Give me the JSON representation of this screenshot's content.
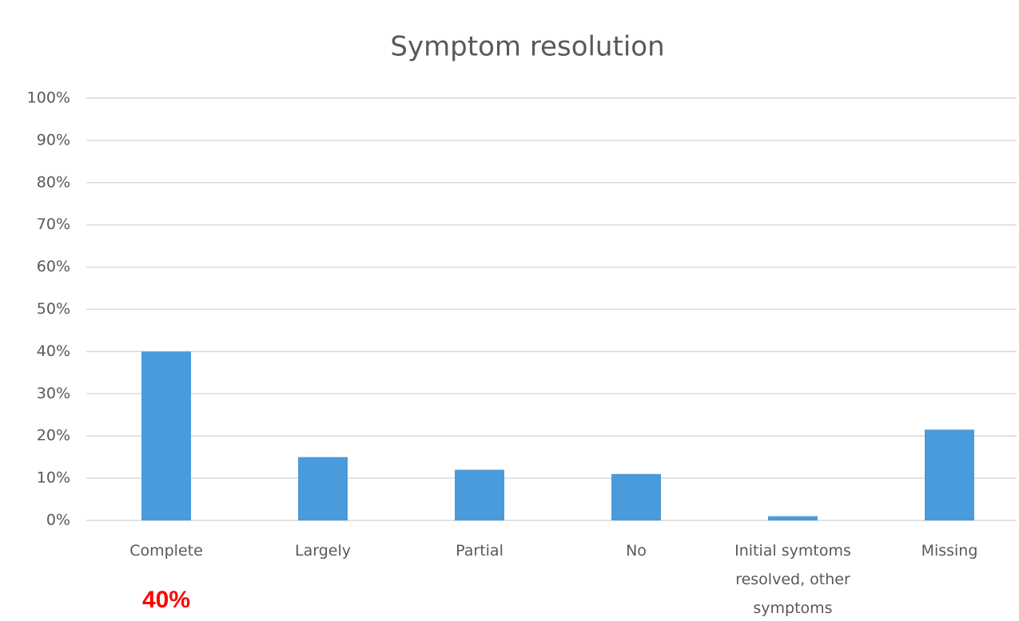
{
  "chart_data": {
    "type": "bar",
    "title": "Symptom resolution",
    "categories": [
      "Complete",
      "Largely",
      "Partial",
      "No",
      "Initial symtoms resolved, other symptoms",
      "Missing"
    ],
    "values": [
      40,
      15,
      12,
      11,
      1,
      21.5
    ],
    "color": "#4a9bdc",
    "ylim": [
      0,
      100
    ],
    "yticks": [
      {
        "value": 0,
        "label": "0%"
      },
      {
        "value": 10,
        "label": "10%"
      },
      {
        "value": 20,
        "label": "20%"
      },
      {
        "value": 30,
        "label": "30%"
      },
      {
        "value": 40,
        "label": "40%"
      },
      {
        "value": 50,
        "label": "50%"
      },
      {
        "value": 60,
        "label": "60%"
      },
      {
        "value": 70,
        "label": "70%"
      },
      {
        "value": 80,
        "label": "80%"
      },
      {
        "value": 90,
        "label": "90%"
      },
      {
        "value": 100,
        "label": "100%"
      }
    ],
    "grid": true,
    "annotation": "40%"
  }
}
